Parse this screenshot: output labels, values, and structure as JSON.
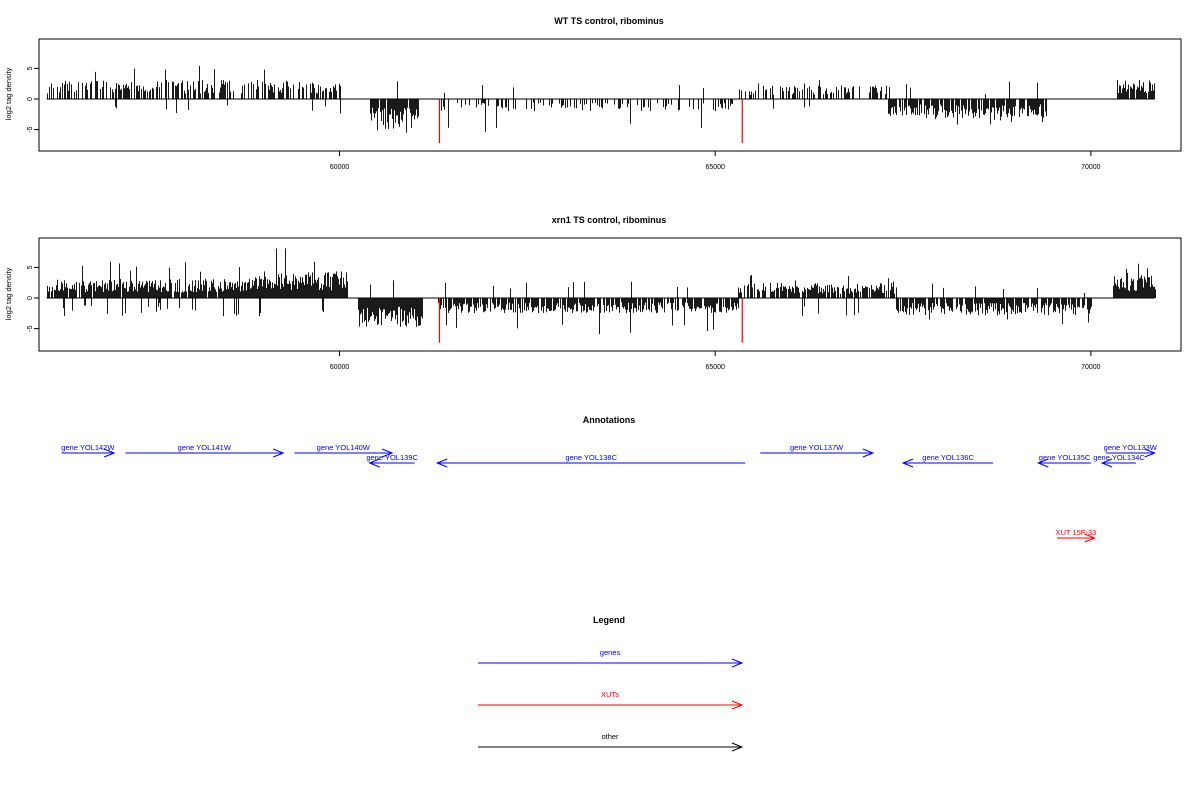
{
  "chart_data": [
    {
      "type": "bar",
      "title": "WT TS control, ribominus",
      "ylabel": "log2 tag density",
      "xlabel": "",
      "xlim": [
        56000,
        71200
      ],
      "ylim": [
        -7.5,
        9
      ],
      "yticks": [
        -5,
        0,
        5
      ],
      "xticks": [
        60000,
        65000,
        70000
      ],
      "baseline_range": [
        56100,
        70850
      ],
      "segments": [
        {
          "x0": 56100,
          "x1": 59500,
          "sign": 1,
          "density": 0.55,
          "amp": 2.5,
          "max": 5.5,
          "noise": 0.05
        },
        {
          "x0": 59500,
          "x1": 60000,
          "sign": 1,
          "density": 0.6,
          "amp": 2.0,
          "max": 3.0,
          "noise": 0.05
        },
        {
          "x0": 60400,
          "x1": 61050,
          "sign": -1,
          "density": 0.95,
          "amp": 4.0,
          "max": 6.0,
          "noise": 0.02
        },
        {
          "x0": 61300,
          "x1": 65300,
          "sign": -1,
          "density": 0.3,
          "amp": 1.6,
          "max": 5.5,
          "noise": 0.05
        },
        {
          "x0": 65300,
          "x1": 67300,
          "sign": 1,
          "density": 0.45,
          "amp": 1.8,
          "max": 3.5,
          "noise": 0.05
        },
        {
          "x0": 67300,
          "x1": 69400,
          "sign": -1,
          "density": 0.85,
          "amp": 2.5,
          "max": 4.3,
          "noise": 0.03
        },
        {
          "x0": 70350,
          "x1": 70850,
          "sign": 1,
          "density": 0.9,
          "amp": 2.5,
          "max": 4.3,
          "noise": 0.0
        }
      ],
      "highlight": [
        {
          "x": 61330,
          "y": -7.2,
          "color": "#ff0000"
        },
        {
          "x": 65360,
          "y": -7.2,
          "color": "#ff0000"
        }
      ]
    },
    {
      "type": "bar",
      "title": "xrn1 TS control, ribominus",
      "ylabel": "log2 tag density",
      "xlabel": "",
      "xlim": [
        56000,
        71200
      ],
      "ylim": [
        -7.5,
        9
      ],
      "yticks": [
        -5,
        0,
        5
      ],
      "xticks": [
        60000,
        65000,
        70000
      ],
      "baseline_range": [
        56100,
        70850
      ],
      "segments": [
        {
          "x0": 56100,
          "x1": 58800,
          "sign": 1,
          "density": 0.95,
          "amp": 2.5,
          "max": 6.0,
          "noise": 0.08
        },
        {
          "x0": 58800,
          "x1": 60100,
          "sign": 1,
          "density": 1.0,
          "amp": 3.5,
          "max": 8.3,
          "noise": 0.03
        },
        {
          "x0": 60250,
          "x1": 61100,
          "sign": -1,
          "density": 1.0,
          "amp": 3.8,
          "max": 7.0,
          "noise": 0.02
        },
        {
          "x0": 61300,
          "x1": 65300,
          "sign": -1,
          "density": 0.8,
          "amp": 2.0,
          "max": 6.0,
          "noise": 0.03
        },
        {
          "x0": 65300,
          "x1": 67400,
          "sign": 1,
          "density": 0.8,
          "amp": 2.0,
          "max": 3.8,
          "noise": 0.05
        },
        {
          "x0": 67400,
          "x1": 70000,
          "sign": -1,
          "density": 0.85,
          "amp": 2.3,
          "max": 4.8,
          "noise": 0.03
        },
        {
          "x0": 70300,
          "x1": 70850,
          "sign": 1,
          "density": 1.0,
          "amp": 3.0,
          "max": 5.8,
          "noise": 0.0
        }
      ],
      "highlight": [
        {
          "x": 61330,
          "y": -7.3,
          "color": "#ff0000"
        },
        {
          "x": 65360,
          "y": -7.3,
          "color": "#ff0000"
        }
      ]
    },
    {
      "type": "annotation-track",
      "title": "Annotations",
      "xlim": [
        56000,
        71200
      ],
      "features": [
        {
          "label": "gene YOL142W",
          "start": 56300,
          "end": 57000,
          "strand": "+",
          "row": 0,
          "kind": "gene"
        },
        {
          "label": "gene YOL141W",
          "start": 57150,
          "end": 59250,
          "strand": "+",
          "row": 0,
          "kind": "gene"
        },
        {
          "label": "gene YOL140W",
          "start": 59400,
          "end": 60700,
          "strand": "+",
          "row": 0,
          "kind": "gene"
        },
        {
          "label": "gene YOL139C",
          "start": 60400,
          "end": 61000,
          "strand": "-",
          "row": 1,
          "kind": "gene"
        },
        {
          "label": "gene YOL138C",
          "start": 61300,
          "end": 65400,
          "strand": "-",
          "row": 1,
          "kind": "gene"
        },
        {
          "label": "gene YOL137W",
          "start": 65600,
          "end": 67100,
          "strand": "+",
          "row": 0,
          "kind": "gene"
        },
        {
          "label": "gene YOL136C",
          "start": 67500,
          "end": 68700,
          "strand": "-",
          "row": 1,
          "kind": "gene"
        },
        {
          "label": "gene YOL135C",
          "start": 69300,
          "end": 70000,
          "strand": "-",
          "row": 1,
          "kind": "gene"
        },
        {
          "label": "gene YOL134C",
          "start": 70150,
          "end": 70600,
          "strand": "-",
          "row": 1,
          "kind": "gene"
        },
        {
          "label": "gene YOL133W",
          "start": 70200,
          "end": 70850,
          "strand": "+",
          "row": 0,
          "kind": "gene"
        },
        {
          "label": "XUT 15F-33",
          "start": 69550,
          "end": 70050,
          "strand": "+",
          "row": 2,
          "kind": "XUT"
        }
      ]
    },
    {
      "type": "legend",
      "title": "Legend",
      "entries": [
        {
          "label": "genes",
          "color": "#0000ff"
        },
        {
          "label": "XUTs",
          "color": "#ff0000"
        },
        {
          "label": "other",
          "color": "#000000"
        }
      ]
    }
  ]
}
